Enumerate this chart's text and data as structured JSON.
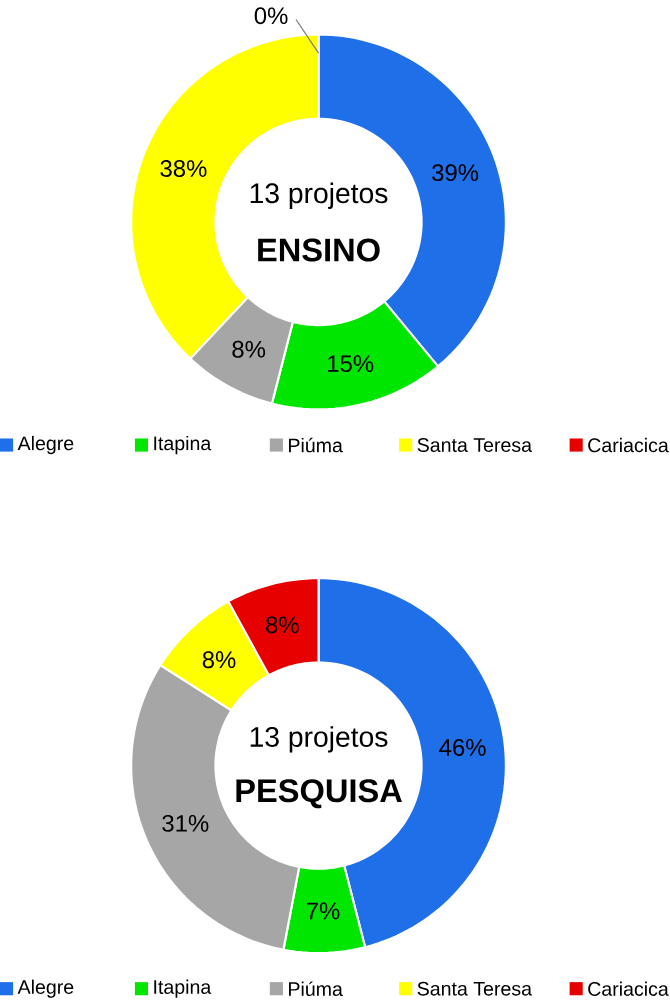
{
  "chart_data": [
    {
      "type": "donut",
      "title": "13 projetos",
      "subtitle": "ENSINO",
      "categories": [
        "Alegre",
        "Itapina",
        "Piúma",
        "Santa Teresa",
        "Cariacica"
      ],
      "values": [
        39,
        15,
        8,
        38,
        0
      ],
      "value_labels": [
        "39%",
        "15%",
        "8%",
        "38%",
        "0%"
      ],
      "colors": [
        "#1f6fe8",
        "#00e600",
        "#a6a6a6",
        "#ffff00",
        "#e60000"
      ],
      "legend": "bottom"
    },
    {
      "type": "donut",
      "title": "13 projetos",
      "subtitle": "PESQUISA",
      "categories": [
        "Alegre",
        "Itapina",
        "Piúma",
        "Santa Teresa",
        "Cariacica"
      ],
      "values": [
        46,
        7,
        31,
        8,
        8
      ],
      "value_labels": [
        "46%",
        "7%",
        "31%",
        "8%",
        "8%"
      ],
      "colors": [
        "#1f6fe8",
        "#00e600",
        "#a6a6a6",
        "#ffff00",
        "#e60000"
      ],
      "legend": "bottom"
    }
  ]
}
